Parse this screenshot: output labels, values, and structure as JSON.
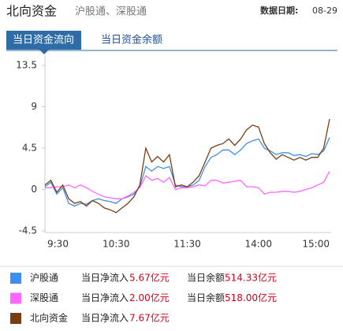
{
  "header": {
    "title": "北向资金",
    "subtitle": "沪股通、深股通",
    "date_label": "数据日期:",
    "date": "08-29"
  },
  "tabs": [
    {
      "label": "当日资金流向",
      "active": true
    },
    {
      "label": "当日资金余额",
      "active": false
    }
  ],
  "chart_data": {
    "type": "line",
    "categories": [
      "9:30",
      null,
      null,
      null,
      null,
      null,
      null,
      null,
      null,
      null,
      null,
      null,
      "10:30",
      null,
      null,
      null,
      null,
      null,
      null,
      null,
      null,
      null,
      null,
      null,
      "11:30",
      null,
      null,
      null,
      null,
      null,
      null,
      null,
      null,
      null,
      null,
      null,
      "14:00",
      null,
      null,
      null,
      null,
      null,
      null,
      null,
      null,
      null,
      null,
      null,
      "15:00"
    ],
    "ylim": [
      -4.5,
      13.5
    ],
    "yticks": [
      13.5,
      9,
      4.5,
      0,
      -4.5
    ],
    "grid": false,
    "series": [
      {
        "name": "沪股通",
        "color": "#3d8ef0",
        "values": [
          0.3,
          0.8,
          -0.5,
          0.2,
          -1.5,
          -1.8,
          -1.5,
          -1.6,
          -1.2,
          -1.0,
          -1.2,
          -1.3,
          -1.5,
          -1.0,
          -0.8,
          -0.5,
          0.3,
          2.5,
          2.0,
          2.5,
          2.3,
          2.5,
          0.5,
          0.3,
          0.3,
          0.5,
          1.0,
          2.5,
          3.5,
          3.8,
          4.3,
          4.3,
          3.8,
          4.3,
          5.0,
          5.3,
          5.5,
          4.5,
          4.2,
          3.8,
          4.0,
          4.0,
          3.7,
          3.8,
          3.6,
          3.9,
          3.8,
          4.2,
          5.67
        ]
      },
      {
        "name": "深股通",
        "color": "#ff66ff",
        "values": [
          0.2,
          0.2,
          0.3,
          0.3,
          0.5,
          0.2,
          0.5,
          0.2,
          -0.2,
          -0.5,
          -0.8,
          -0.9,
          -1.0,
          -1.0,
          -0.7,
          -0.3,
          0.2,
          1.5,
          1.0,
          1.2,
          0.8,
          1.3,
          0.0,
          0.2,
          0.2,
          0.3,
          0.5,
          0.4,
          1.0,
          1.0,
          0.7,
          0.8,
          0.9,
          1.0,
          0.3,
          0.3,
          0.2,
          -0.5,
          -0.3,
          -0.3,
          -0.2,
          -0.2,
          -0.3,
          -0.2,
          0.0,
          0.2,
          0.5,
          0.8,
          2.0
        ]
      },
      {
        "name": "北向资金",
        "color": "#7a3d12",
        "values": [
          0.5,
          1.0,
          -0.3,
          0.5,
          -1.0,
          -1.5,
          -1.3,
          -1.8,
          -1.2,
          -1.5,
          -2.0,
          -2.2,
          -2.5,
          -2.0,
          -1.5,
          -0.8,
          0.5,
          4.5,
          3.0,
          3.6,
          3.0,
          3.8,
          0.3,
          0.5,
          0.3,
          0.8,
          1.5,
          3.0,
          4.5,
          4.8,
          5.0,
          5.5,
          4.8,
          5.5,
          6.5,
          7.0,
          6.8,
          5.0,
          4.0,
          3.3,
          3.8,
          3.5,
          3.2,
          3.5,
          3.2,
          3.5,
          3.5,
          4.5,
          7.67
        ]
      }
    ]
  },
  "legend": [
    {
      "net_label": "当日净流入",
      "net": "5.67亿元",
      "balance_label": "当日余额",
      "balance": "514.33亿元"
    },
    {
      "net_label": "当日净流入",
      "net": "2.00亿元",
      "balance_label": "当日余额",
      "balance": "518.00亿元"
    },
    {
      "net_label": "当日净流入",
      "net": "7.67亿元"
    }
  ]
}
